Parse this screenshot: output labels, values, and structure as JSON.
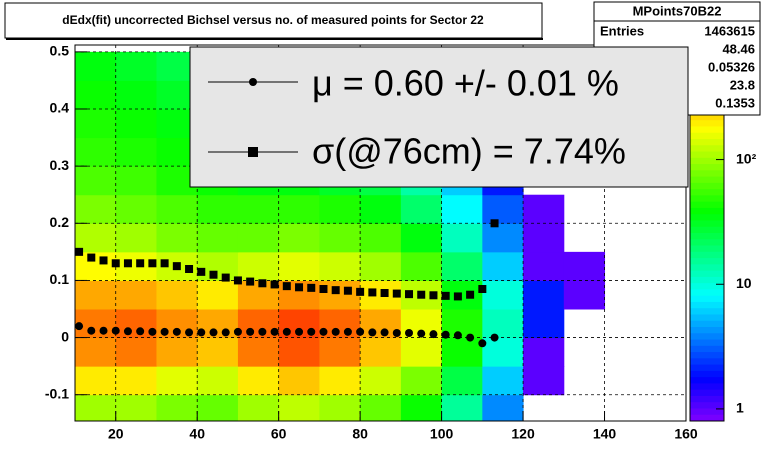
{
  "chart_data": {
    "type": "heatmap",
    "title": "dEdx(fit) uncorrected Bichsel versus no. of measured points for Sector 22",
    "xlim": [
      10,
      160
    ],
    "xticks": [
      20,
      40,
      60,
      80,
      100,
      120,
      140,
      160
    ],
    "ylim": [
      -0.146,
      0.512
    ],
    "yticks": [
      -0.1,
      0,
      0.1,
      0.2,
      0.3,
      0.4,
      0.5
    ],
    "grid": true,
    "zlim": [
      0.8,
      830
    ],
    "zlog": true,
    "zticks": [
      1,
      10,
      {
        "value": 100,
        "label": "10²"
      }
    ],
    "x_edges": [
      10,
      20,
      30,
      40,
      50,
      60,
      70,
      80,
      90,
      100,
      110,
      120,
      130,
      140
    ],
    "y_edges": [
      -0.15,
      -0.1,
      -0.05,
      0,
      0.05,
      0.1,
      0.15,
      0.2,
      0.25,
      0.3,
      0.35,
      0.4,
      0.45,
      0.5
    ],
    "z": [
      [
        100,
        100,
        80,
        70,
        100,
        120,
        100,
        70,
        40,
        15,
        4,
        null,
        null
      ],
      [
        200,
        200,
        150,
        130,
        200,
        250,
        200,
        130,
        80,
        25,
        6,
        1,
        null
      ],
      [
        350,
        400,
        300,
        250,
        400,
        500,
        400,
        250,
        150,
        40,
        10,
        1,
        null
      ],
      [
        400,
        450,
        350,
        300,
        450,
        550,
        450,
        300,
        160,
        45,
        12,
        2,
        null
      ],
      [
        300,
        300,
        250,
        200,
        300,
        350,
        300,
        200,
        120,
        35,
        10,
        2,
        1
      ],
      [
        180,
        160,
        130,
        110,
        130,
        150,
        130,
        100,
        60,
        20,
        6,
        1,
        1
      ],
      [
        110,
        100,
        80,
        70,
        70,
        80,
        70,
        60,
        35,
        12,
        4,
        1,
        null
      ],
      [
        80,
        70,
        60,
        50,
        50,
        50,
        45,
        35,
        20,
        8,
        3,
        1,
        null
      ],
      [
        60,
        55,
        45,
        40,
        35,
        35,
        30,
        25,
        14,
        6,
        2,
        null,
        null
      ],
      [
        50,
        45,
        40,
        35,
        30,
        28,
        24,
        18,
        10,
        4,
        1,
        null,
        null
      ],
      [
        45,
        40,
        35,
        30,
        25,
        22,
        18,
        14,
        8,
        3,
        1,
        null,
        null
      ],
      [
        40,
        35,
        30,
        25,
        20,
        18,
        15,
        11,
        6,
        2,
        1,
        null,
        null
      ],
      [
        35,
        30,
        25,
        20,
        16,
        14,
        12,
        9,
        5,
        2,
        null,
        null,
        null
      ]
    ],
    "series": [
      {
        "name": "μ  =  0.60 +/-  0.01 %",
        "marker": "circle",
        "color": "#000000",
        "x": [
          11,
          14,
          17,
          20,
          23,
          26,
          29,
          32,
          35,
          38,
          41,
          44,
          47,
          50,
          53,
          56,
          59,
          62,
          65,
          68,
          71,
          74,
          77,
          80,
          83,
          86,
          89,
          92,
          95,
          98,
          101,
          104,
          107,
          110,
          113
        ],
        "values": [
          0.02,
          0.012,
          0.012,
          0.012,
          0.011,
          0.011,
          0.01,
          0.01,
          0.01,
          0.009,
          0.009,
          0.009,
          0.009,
          0.01,
          0.01,
          0.01,
          0.01,
          0.01,
          0.01,
          0.01,
          0.01,
          0.01,
          0.01,
          0.01,
          0.009,
          0.009,
          0.008,
          0.008,
          0.007,
          0.006,
          0.005,
          0.004,
          0.0,
          -0.01,
          0.0
        ]
      },
      {
        "name": "σ(@76cm) =  7.74%",
        "marker": "square",
        "color": "#000000",
        "x": [
          11,
          14,
          17,
          20,
          23,
          26,
          29,
          32,
          35,
          38,
          41,
          44,
          47,
          50,
          53,
          56,
          59,
          62,
          65,
          68,
          71,
          74,
          77,
          80,
          83,
          86,
          89,
          92,
          95,
          98,
          101,
          104,
          107,
          110,
          113
        ],
        "values": [
          0.15,
          0.14,
          0.135,
          0.13,
          0.13,
          0.13,
          0.13,
          0.13,
          0.125,
          0.12,
          0.115,
          0.11,
          0.105,
          0.1,
          0.098,
          0.095,
          0.093,
          0.09,
          0.088,
          0.087,
          0.085,
          0.083,
          0.082,
          0.08,
          0.079,
          0.078,
          0.077,
          0.076,
          0.075,
          0.074,
          0.073,
          0.072,
          0.075,
          0.085,
          0.2
        ]
      }
    ],
    "stats": {
      "title": "MPoints70B22",
      "rows": [
        {
          "label": "Entries",
          "value": "1463615"
        },
        {
          "value": "48.46"
        },
        {
          "value": "0.05326"
        },
        {
          "value": "23.8"
        },
        {
          "value": "0.1353"
        }
      ]
    }
  }
}
